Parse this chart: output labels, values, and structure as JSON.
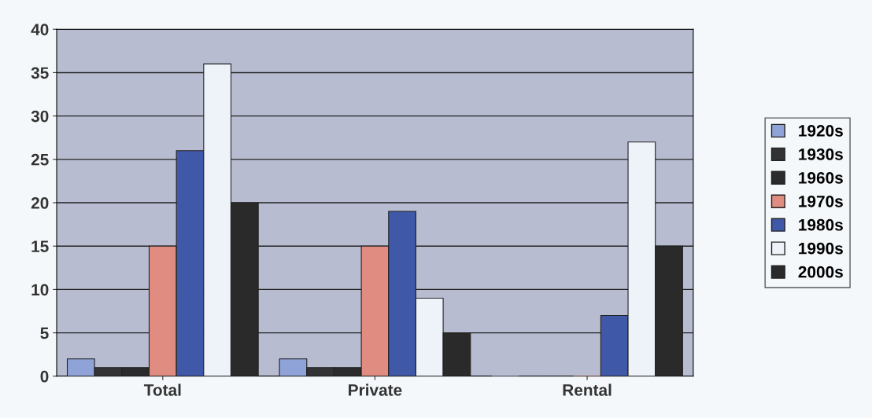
{
  "chart_data": {
    "type": "bar",
    "categories": [
      "Total",
      "Private",
      "Rental"
    ],
    "series": [
      {
        "name": "1920s",
        "color": "#8fa3d8",
        "values": [
          2,
          2,
          0
        ]
      },
      {
        "name": "1930s",
        "color": "#333336",
        "values": [
          1,
          1,
          0
        ]
      },
      {
        "name": "1960s",
        "color": "#2b2b2e",
        "values": [
          1,
          1,
          0
        ]
      },
      {
        "name": "1970s",
        "color": "#e08c80",
        "values": [
          15,
          15,
          0
        ]
      },
      {
        "name": "1980s",
        "color": "#3f58a8",
        "values": [
          26,
          19,
          7
        ]
      },
      {
        "name": "1990s",
        "color": "#eef3fa",
        "values": [
          36,
          9,
          27
        ]
      },
      {
        "name": "2000s",
        "color": "#2a2a2a",
        "values": [
          20,
          5,
          15
        ]
      }
    ],
    "ylim": [
      0,
      40
    ],
    "yticks": [
      0,
      5,
      10,
      15,
      20,
      25,
      30,
      35,
      40
    ],
    "grid": "y",
    "legend": "right"
  }
}
